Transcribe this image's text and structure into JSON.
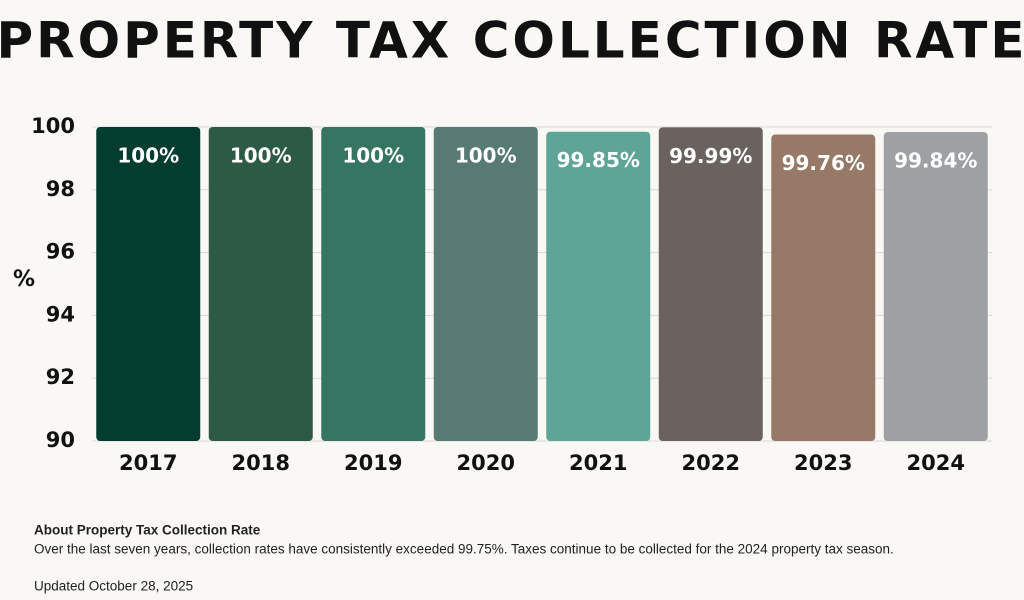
{
  "chart_data": {
    "type": "bar",
    "title": "PROPERTY TAX COLLECTION RATE",
    "y_label": "%",
    "categories": [
      "2017",
      "2018",
      "2019",
      "2020",
      "2021",
      "2022",
      "2023",
      "2024"
    ],
    "values": [
      100,
      100,
      100,
      100,
      99.85,
      99.99,
      99.76,
      99.84
    ],
    "value_labels": [
      "100%",
      "100%",
      "100%",
      "100%",
      "99.85%",
      "99.99%",
      "99.76%",
      "99.84%"
    ],
    "colors": [
      "#023d2f",
      "#2d5a45",
      "#367561",
      "#587a75",
      "#5fa597",
      "#6a625f",
      "#967a67",
      "#9ea0a3"
    ],
    "ylim": [
      90,
      100
    ],
    "yticks": [
      90,
      92,
      94,
      96,
      98,
      100
    ],
    "grid": true
  },
  "footer": {
    "heading": "About Property Tax Collection Rate",
    "text": "Over the last seven years, collection rates have consistently exceeded 99.75%. Taxes continue to be collected for the 2024 property tax season.",
    "updated": "Updated October 28, 2025"
  }
}
